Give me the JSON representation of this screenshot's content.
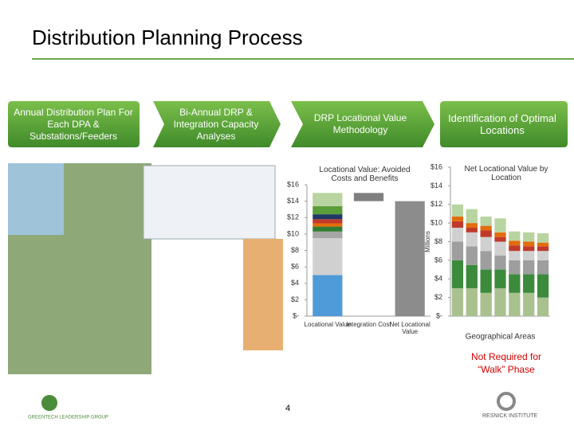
{
  "title": "Distribution Planning Process",
  "steps": [
    "Annual Distribution Plan For Each DPA & Substations/Feeders",
    "Bi-Annual DRP & Integration Capacity Analyses",
    "DRP Locational Value Methodology",
    "Identification of Optimal Locations"
  ],
  "chart_data": [
    {
      "type": "waterfall",
      "title": "Locational Value: Avoided Costs and Benefits",
      "categories": [
        "Locational Value",
        "Integration Cost",
        "Net Locational Value"
      ],
      "series": [
        {
          "color": "#4f9bd9",
          "values": [
            5,
            null,
            null
          ]
        },
        {
          "color": "#d0d0d0",
          "values": [
            4.5,
            null,
            null
          ]
        },
        {
          "color": "#a6a6a6",
          "values": [
            0.8,
            null,
            null
          ]
        },
        {
          "color": "#2e7d32",
          "values": [
            0.6,
            null,
            null
          ]
        },
        {
          "color": "#e46c0a",
          "values": [
            0.4,
            null,
            null
          ]
        },
        {
          "color": "#c0392b",
          "values": [
            0.5,
            null,
            null
          ]
        },
        {
          "color": "#1f3864",
          "values": [
            0.6,
            null,
            null
          ]
        },
        {
          "color": "#5a9e3a",
          "values": [
            1.0,
            null,
            null
          ]
        },
        {
          "color": "#b8d4a0",
          "values": [
            1.6,
            null,
            null
          ]
        },
        {
          "color": "#7f7f7f",
          "values": [
            null,
            -1,
            null
          ]
        },
        {
          "color": "#8c8c8c",
          "values": [
            null,
            null,
            14
          ]
        }
      ],
      "ylim": [
        0,
        16
      ],
      "yticks": [
        {
          "value": 0,
          "label": "$-"
        },
        {
          "value": 2,
          "label": "$2"
        },
        {
          "value": 4,
          "label": "$4"
        },
        {
          "value": 6,
          "label": "$6"
        },
        {
          "value": 8,
          "label": "$8"
        },
        {
          "value": 10,
          "label": "$10"
        },
        {
          "value": 12,
          "label": "$12"
        },
        {
          "value": 14,
          "label": "$14"
        },
        {
          "value": 16,
          "label": "$16"
        }
      ]
    },
    {
      "type": "stacked_bar",
      "title": "Net Locational Value by Location",
      "ylabel": "Millions",
      "xlabel": "Geographical Areas",
      "categories": [
        null,
        null,
        null,
        null,
        null,
        null,
        null
      ],
      "series": [
        {
          "color": "#a9c18f",
          "values": [
            3,
            3,
            2.5,
            3,
            2.5,
            2.5,
            2
          ]
        },
        {
          "color": "#3c8a3c",
          "values": [
            3,
            2.5,
            2.5,
            2,
            2,
            2,
            2.5
          ]
        },
        {
          "color": "#9e9e9e",
          "values": [
            2,
            2,
            2,
            1.5,
            1.5,
            1.5,
            1.5
          ]
        },
        {
          "color": "#d0d0d0",
          "values": [
            1.5,
            1.5,
            1.5,
            1.5,
            1,
            1,
            1
          ]
        },
        {
          "color": "#c0392b",
          "values": [
            0.7,
            0.5,
            0.7,
            0.5,
            0.6,
            0.5,
            0.5
          ]
        },
        {
          "color": "#e46c0a",
          "values": [
            0.5,
            0.5,
            0.5,
            0.5,
            0.5,
            0.5,
            0.4
          ]
        },
        {
          "color": "#b8d4a0",
          "values": [
            1.3,
            1.5,
            1,
            1.5,
            1,
            1,
            1
          ]
        }
      ],
      "ylim": [
        0,
        16
      ],
      "yticks": [
        {
          "value": 0,
          "label": "$-"
        },
        {
          "value": 2,
          "label": "$2"
        },
        {
          "value": 4,
          "label": "$4"
        },
        {
          "value": 6,
          "label": "$6"
        },
        {
          "value": 8,
          "label": "$8"
        },
        {
          "value": 10,
          "label": "$10"
        },
        {
          "value": 12,
          "label": "$12"
        },
        {
          "value": 14,
          "label": "$14"
        },
        {
          "value": 16,
          "label": "$16"
        }
      ]
    }
  ],
  "note": "Not Required for “Walk” Phase",
  "page_number": "4",
  "logos": [
    "GREENTECH LEADERSHIP GROUP",
    "RESNICK INSTITUTE"
  ]
}
